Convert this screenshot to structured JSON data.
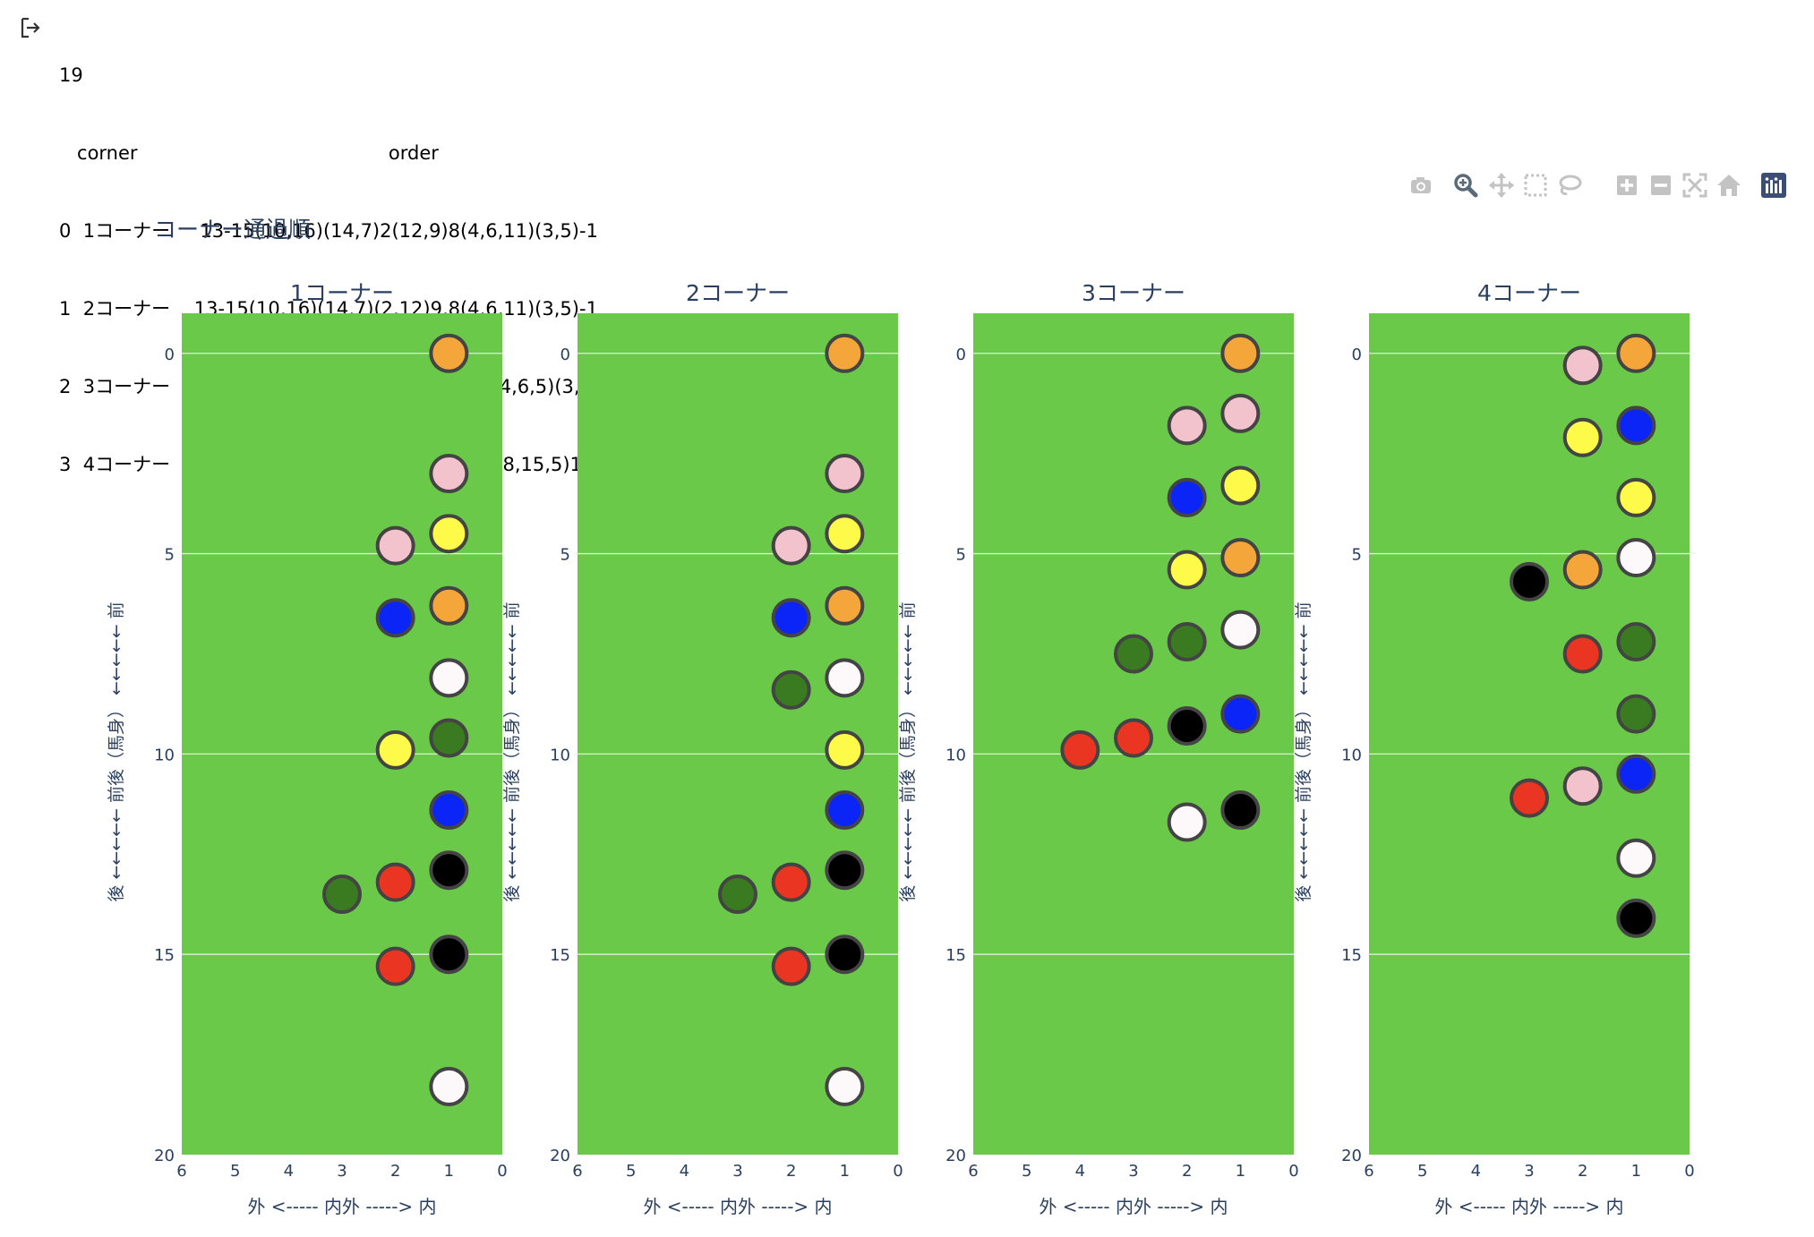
{
  "output": {
    "lines": [
      "19",
      "   corner                                          order",
      "0  1コーナー     13-15(10,16)(14,7)2(12,9)8(4,6,11)(3,5)-1",
      "1  2コーナー    13-15(10,16)(14,7)(2,12)9,8(4,6,11)(3,5)-1",
      "2  3コーナー  13(15,16)(10,7)(14,9)(2,12,11)(8,4,6,5)(3,1)",
      "3  4コーナー    (*13,16)(7,9)10(2,14,3)(12,6)11(8,15,5)1,4"
    ]
  },
  "modebar": [
    {
      "name": "camera-icon",
      "title": "Download plot as a png"
    },
    {
      "name": "zoom-icon",
      "title": "Zoom"
    },
    {
      "name": "pan-icon",
      "title": "Pan"
    },
    {
      "name": "box-select-icon",
      "title": "Box Select"
    },
    {
      "name": "lasso-select-icon",
      "title": "Lasso Select"
    },
    {
      "name": "zoom-in-icon",
      "title": "Zoom in"
    },
    {
      "name": "zoom-out-icon",
      "title": "Zoom out"
    },
    {
      "name": "autoscale-icon",
      "title": "Autoscale"
    },
    {
      "name": "reset-axes-icon",
      "title": "Reset axes"
    },
    {
      "name": "plotly-logo-icon",
      "title": "Produced with Plotly"
    }
  ],
  "chart_data": {
    "type": "scatter",
    "title": "コーナー通過順",
    "xlabel": "外 <-----  内外  -----> 内",
    "ylabel": "後  ←←←←←   前後（馬身）  ←←←←←   前",
    "xlim": [
      6,
      0
    ],
    "ylim": [
      20,
      -1
    ],
    "xticks": [
      6,
      5,
      4,
      3,
      2,
      1,
      0
    ],
    "yticks": [
      0,
      5,
      10,
      15,
      20
    ],
    "grid": true,
    "plot_bgcolor": "#6bc94a",
    "marker_outline": "#444444",
    "colors": {
      "orange": "#f4a63a",
      "pink": "#f2c3cc",
      "yellow": "#fdfa4a",
      "blue": "#0a25f5",
      "white": "#fdf8f9",
      "green": "#3a7a20",
      "red": "#ea3522",
      "black": "#000000"
    },
    "subplots": [
      {
        "title": "1コーナー",
        "points": [
          {
            "x": 1,
            "y": 0,
            "c": "orange"
          },
          {
            "x": 1,
            "y": 3,
            "c": "pink"
          },
          {
            "x": 1,
            "y": 4.5,
            "c": "yellow"
          },
          {
            "x": 2,
            "y": 4.8,
            "c": "pink"
          },
          {
            "x": 1,
            "y": 6.3,
            "c": "orange"
          },
          {
            "x": 2,
            "y": 6.6,
            "c": "blue"
          },
          {
            "x": 1,
            "y": 8.1,
            "c": "white"
          },
          {
            "x": 1,
            "y": 9.6,
            "c": "green"
          },
          {
            "x": 2,
            "y": 9.9,
            "c": "yellow"
          },
          {
            "x": 1,
            "y": 11.4,
            "c": "blue"
          },
          {
            "x": 1,
            "y": 12.9,
            "c": "black"
          },
          {
            "x": 2,
            "y": 13.2,
            "c": "red"
          },
          {
            "x": 3,
            "y": 13.5,
            "c": "green"
          },
          {
            "x": 1,
            "y": 15,
            "c": "black"
          },
          {
            "x": 2,
            "y": 15.3,
            "c": "red"
          },
          {
            "x": 1,
            "y": 18.3,
            "c": "white"
          }
        ]
      },
      {
        "title": "2コーナー",
        "points": [
          {
            "x": 1,
            "y": 0,
            "c": "orange"
          },
          {
            "x": 1,
            "y": 3,
            "c": "pink"
          },
          {
            "x": 1,
            "y": 4.5,
            "c": "yellow"
          },
          {
            "x": 2,
            "y": 4.8,
            "c": "pink"
          },
          {
            "x": 1,
            "y": 6.3,
            "c": "orange"
          },
          {
            "x": 2,
            "y": 6.6,
            "c": "blue"
          },
          {
            "x": 1,
            "y": 8.1,
            "c": "white"
          },
          {
            "x": 2,
            "y": 8.4,
            "c": "green"
          },
          {
            "x": 1,
            "y": 9.9,
            "c": "yellow"
          },
          {
            "x": 1,
            "y": 11.4,
            "c": "blue"
          },
          {
            "x": 1,
            "y": 12.9,
            "c": "black"
          },
          {
            "x": 2,
            "y": 13.2,
            "c": "red"
          },
          {
            "x": 3,
            "y": 13.5,
            "c": "green"
          },
          {
            "x": 1,
            "y": 15,
            "c": "black"
          },
          {
            "x": 2,
            "y": 15.3,
            "c": "red"
          },
          {
            "x": 1,
            "y": 18.3,
            "c": "white"
          }
        ]
      },
      {
        "title": "3コーナー",
        "points": [
          {
            "x": 1,
            "y": 0,
            "c": "orange"
          },
          {
            "x": 1,
            "y": 1.5,
            "c": "pink"
          },
          {
            "x": 2,
            "y": 1.8,
            "c": "pink"
          },
          {
            "x": 1,
            "y": 3.3,
            "c": "yellow"
          },
          {
            "x": 2,
            "y": 3.6,
            "c": "blue"
          },
          {
            "x": 1,
            "y": 5.1,
            "c": "orange"
          },
          {
            "x": 2,
            "y": 5.4,
            "c": "yellow"
          },
          {
            "x": 1,
            "y": 6.9,
            "c": "white"
          },
          {
            "x": 2,
            "y": 7.2,
            "c": "green"
          },
          {
            "x": 3,
            "y": 7.5,
            "c": "green"
          },
          {
            "x": 1,
            "y": 9,
            "c": "blue"
          },
          {
            "x": 2,
            "y": 9.3,
            "c": "black"
          },
          {
            "x": 3,
            "y": 9.6,
            "c": "red"
          },
          {
            "x": 4,
            "y": 9.9,
            "c": "red"
          },
          {
            "x": 1,
            "y": 11.4,
            "c": "black"
          },
          {
            "x": 2,
            "y": 11.7,
            "c": "white"
          }
        ]
      },
      {
        "title": "4コーナー",
        "points": [
          {
            "x": 1,
            "y": 0,
            "c": "orange"
          },
          {
            "x": 2,
            "y": 0.3,
            "c": "pink"
          },
          {
            "x": 1,
            "y": 1.8,
            "c": "blue"
          },
          {
            "x": 2,
            "y": 2.1,
            "c": "yellow"
          },
          {
            "x": 1,
            "y": 3.6,
            "c": "yellow"
          },
          {
            "x": 1,
            "y": 5.1,
            "c": "white"
          },
          {
            "x": 2,
            "y": 5.4,
            "c": "orange"
          },
          {
            "x": 3,
            "y": 5.7,
            "c": "black"
          },
          {
            "x": 1,
            "y": 7.2,
            "c": "green"
          },
          {
            "x": 2,
            "y": 7.5,
            "c": "red"
          },
          {
            "x": 1,
            "y": 9,
            "c": "green"
          },
          {
            "x": 1,
            "y": 10.5,
            "c": "blue"
          },
          {
            "x": 2,
            "y": 10.8,
            "c": "pink"
          },
          {
            "x": 3,
            "y": 11.1,
            "c": "red"
          },
          {
            "x": 1,
            "y": 12.6,
            "c": "white"
          },
          {
            "x": 1,
            "y": 14.1,
            "c": "black"
          }
        ]
      }
    ]
  }
}
